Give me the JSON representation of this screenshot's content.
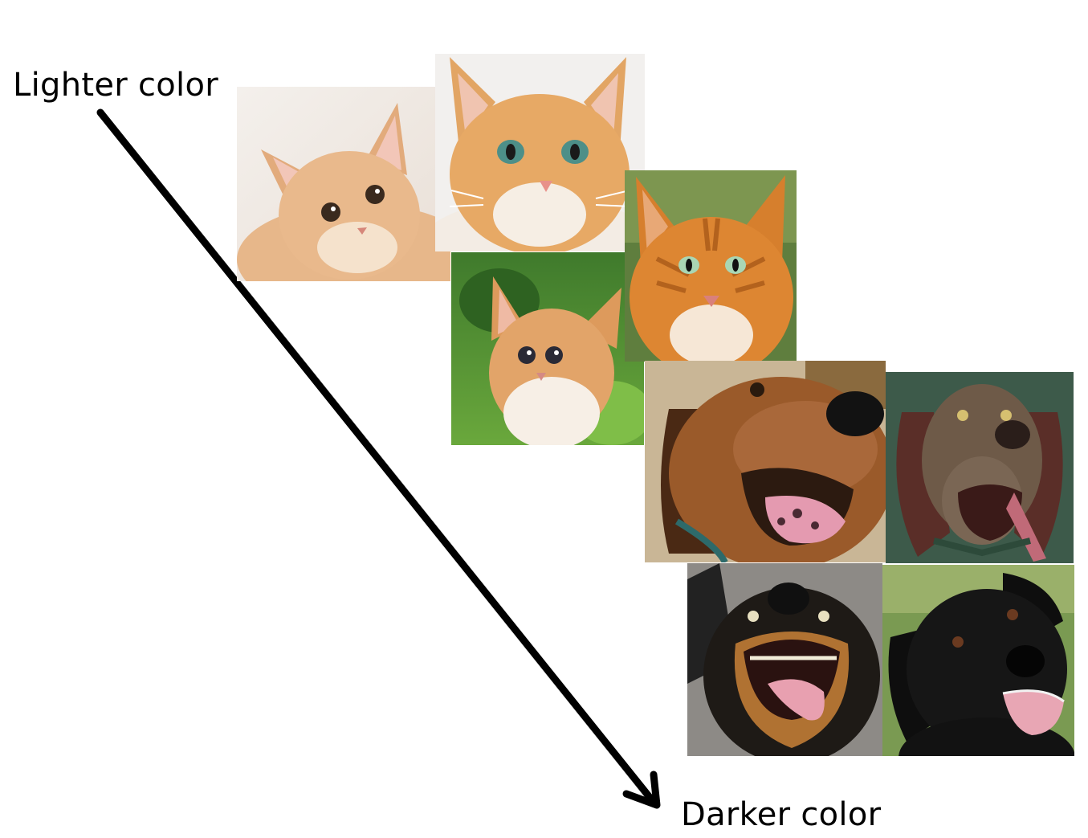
{
  "labels": {
    "lighter": "Lighter color",
    "darker": "Darker color"
  },
  "colors": {
    "arrow": "#000000",
    "cat_light": "#e8b888",
    "cat_orange": "#e59a4e",
    "cat_deep": "#d9852e",
    "dog_brown": "#9a5a2a",
    "dog_liver": "#6e5a48",
    "dog_rottweiler": "#1e1a16",
    "dog_black": "#141414"
  },
  "photos": [
    {
      "id": "cat-1",
      "subject": "kitten-icon"
    },
    {
      "id": "cat-2",
      "subject": "kitten-icon"
    },
    {
      "id": "cat-3",
      "subject": "kitten-icon"
    },
    {
      "id": "cat-4",
      "subject": "cat-icon"
    },
    {
      "id": "dog-1",
      "subject": "dog-icon"
    },
    {
      "id": "dog-2",
      "subject": "dog-icon"
    },
    {
      "id": "dog-3",
      "subject": "dog-icon"
    },
    {
      "id": "dog-4",
      "subject": "dog-icon"
    }
  ]
}
